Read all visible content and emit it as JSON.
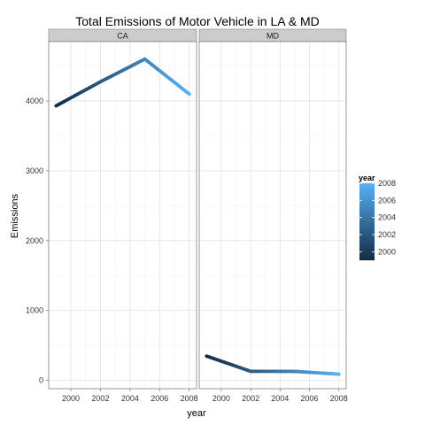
{
  "chart_data": {
    "type": "line",
    "title": "Total Emissions of Motor Vehicle in LA & MD",
    "xlabel": "year",
    "ylabel": "Emissions",
    "xlim": [
      1998.5,
      2008.5
    ],
    "ylim": [
      -120,
      4850
    ],
    "x_ticks": [
      "2000",
      "2002",
      "2004",
      "2006",
      "2008"
    ],
    "y_ticks": [
      "0",
      "1000",
      "2000",
      "3000",
      "4000"
    ],
    "grid": true,
    "color_scale": {
      "variable": "year",
      "low_color": "#132B43",
      "high_color": "#56B1F7",
      "domain": [
        1999,
        2008
      ]
    },
    "legend": {
      "title": "year",
      "labels": [
        "2008",
        "2006",
        "2004",
        "2002",
        "2000"
      ],
      "placement": "right"
    },
    "panels": [
      {
        "name": "CA",
        "x": [
          1999,
          2002,
          2005,
          2008
        ],
        "y": [
          3930,
          4275,
          4600,
          4100
        ]
      },
      {
        "name": "MD",
        "x": [
          1999,
          2002,
          2005,
          2008
        ],
        "y": [
          347,
          129,
          128,
          88
        ]
      }
    ]
  }
}
